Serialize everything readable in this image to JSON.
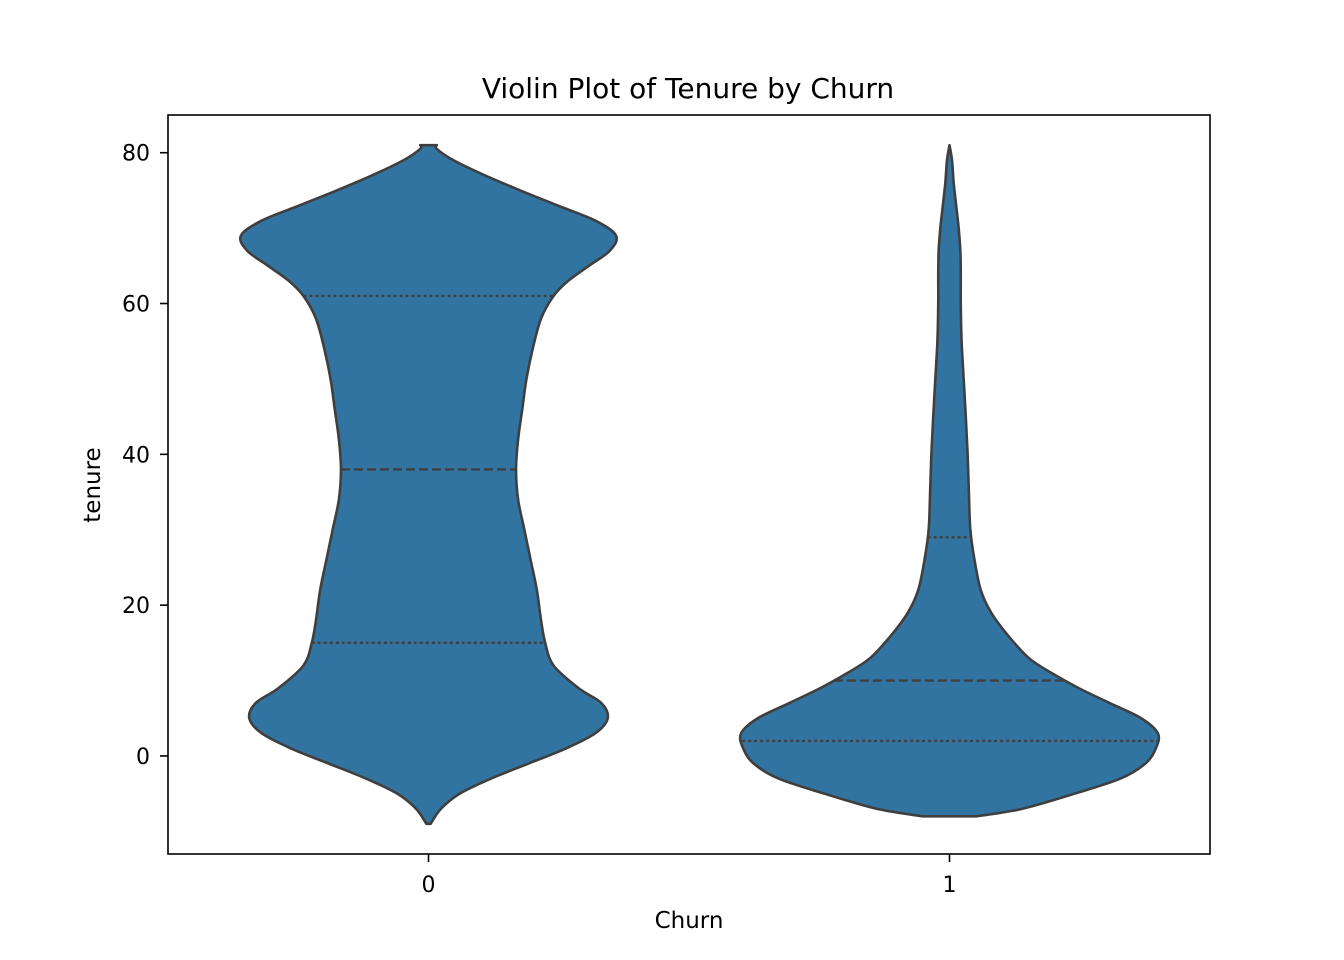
{
  "chart_data": {
    "type": "violin",
    "title": "Violin Plot of Tenure by Churn",
    "xlabel": "Churn",
    "ylabel": "tenure",
    "categories": [
      "0",
      "1"
    ],
    "ylim": [
      -13,
      85
    ],
    "yticks": [
      0,
      20,
      40,
      60,
      80
    ],
    "grid": false,
    "fill_color": "#3274a1",
    "edge_color": "#3f3f3f",
    "violins": [
      {
        "category": "0",
        "quartiles": {
          "q1": 15,
          "median": 38,
          "q3": 61
        },
        "min": -9,
        "max": 81,
        "density_profile": [
          [
            -9,
            0.01
          ],
          [
            -7,
            0.06
          ],
          [
            -5,
            0.15
          ],
          [
            -3,
            0.3
          ],
          [
            -1,
            0.48
          ],
          [
            1,
            0.66
          ],
          [
            3,
            0.8
          ],
          [
            5,
            0.86
          ],
          [
            7,
            0.83
          ],
          [
            9,
            0.72
          ],
          [
            12,
            0.6
          ],
          [
            15,
            0.56
          ],
          [
            18,
            0.54
          ],
          [
            22,
            0.52
          ],
          [
            26,
            0.49
          ],
          [
            30,
            0.46
          ],
          [
            34,
            0.43
          ],
          [
            38,
            0.42
          ],
          [
            42,
            0.43
          ],
          [
            46,
            0.45
          ],
          [
            50,
            0.47
          ],
          [
            54,
            0.5
          ],
          [
            58,
            0.54
          ],
          [
            61,
            0.6
          ],
          [
            63,
            0.67
          ],
          [
            65,
            0.77
          ],
          [
            67,
            0.87
          ],
          [
            69,
            0.9
          ],
          [
            71,
            0.8
          ],
          [
            73,
            0.62
          ],
          [
            75,
            0.44
          ],
          [
            77,
            0.27
          ],
          [
            79,
            0.12
          ],
          [
            80.5,
            0.04
          ],
          [
            81,
            0.04
          ]
        ]
      },
      {
        "category": "1",
        "quartiles": {
          "q1": 2,
          "median": 10,
          "q3": 29
        },
        "min": -8,
        "max": 81,
        "density_profile": [
          [
            -8,
            0.13
          ],
          [
            -7,
            0.35
          ],
          [
            -5,
            0.6
          ],
          [
            -3,
            0.82
          ],
          [
            -1,
            0.94
          ],
          [
            1,
            0.99
          ],
          [
            3,
            1.0
          ],
          [
            5,
            0.92
          ],
          [
            7,
            0.77
          ],
          [
            9,
            0.62
          ],
          [
            11,
            0.49
          ],
          [
            13,
            0.38
          ],
          [
            16,
            0.28
          ],
          [
            19,
            0.2
          ],
          [
            22,
            0.15
          ],
          [
            26,
            0.12
          ],
          [
            30,
            0.1
          ],
          [
            35,
            0.093
          ],
          [
            40,
            0.087
          ],
          [
            45,
            0.078
          ],
          [
            50,
            0.068
          ],
          [
            55,
            0.058
          ],
          [
            60,
            0.054
          ],
          [
            64,
            0.054
          ],
          [
            67,
            0.052
          ],
          [
            70,
            0.044
          ],
          [
            73,
            0.032
          ],
          [
            76,
            0.02
          ],
          [
            79,
            0.012
          ],
          [
            81,
            0.0
          ]
        ]
      }
    ]
  }
}
